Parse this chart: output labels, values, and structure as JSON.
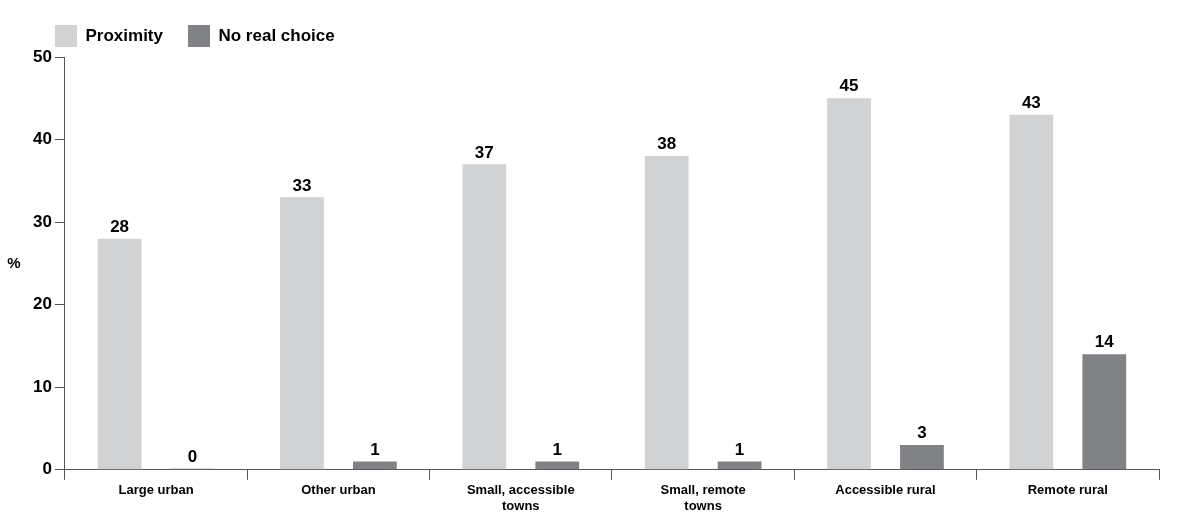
{
  "chart_data": {
    "type": "bar",
    "ylabel": "%",
    "categories": [
      "Large urban",
      "Other urban",
      "Small, accessible towns",
      "Small, remote towns",
      "Accessible rural",
      "Remote rural"
    ],
    "series": [
      {
        "name": "Proximity",
        "color": "#d1d2d4",
        "values": [
          28,
          33,
          37,
          38,
          45,
          43
        ]
      },
      {
        "name": "No real choice",
        "color": "#808285",
        "values": [
          0,
          1,
          1,
          1,
          3,
          14
        ]
      }
    ],
    "ylim": [
      0,
      50
    ],
    "yticks": [
      0,
      10,
      20,
      30,
      40,
      50
    ],
    "grid": false,
    "legend": "top left",
    "data_labels": true
  }
}
